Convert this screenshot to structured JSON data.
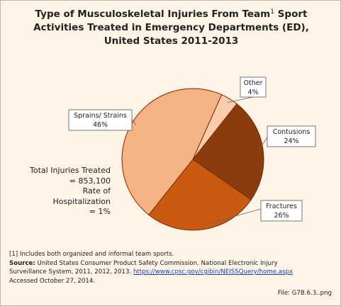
{
  "title": {
    "line1_pre": "Type of Musculoskeletal Injuries From Team",
    "superscript": "1",
    "line1_post": " Sport",
    "line2": "Activities Treated in Emergency Departments (ED),",
    "line3": "United States 2011-2013"
  },
  "stats": {
    "total_label": "Total Injuries Treated",
    "total_value": "= 853,100",
    "rate_label": "Rate of Hospitalization",
    "rate_value": "= 1%"
  },
  "footnotes": {
    "note1": "[1] Includes both organized and informal team sports.",
    "source_label": "Source:",
    "source_text_1": " United States Consumer Product Safety Commission. National Electronic Injury",
    "source_text_2": "Surveillance System, 2011, 2012, 2013. ",
    "source_link": "https://www.cpsc.gov/cgibin/NEISSQuery/home.aspx",
    "accessed": "Accessed October 27, 2014.",
    "file": "File: G7B.6.3..png"
  },
  "chart_data": {
    "type": "pie",
    "slices": [
      {
        "label": "Other",
        "value_label": "4%",
        "value": 4,
        "color": "#f9ccab"
      },
      {
        "label": "Contusions",
        "value_label": "24%",
        "value": 24,
        "color": "#8b3c0c"
      },
      {
        "label": "Fractures",
        "value_label": "26%",
        "value": 26,
        "color": "#c95a10"
      },
      {
        "label": "Sprains/ Strains",
        "value_label": "46%",
        "value": 46,
        "color": "#f5b283"
      }
    ],
    "start_angle_deg": 24,
    "direction": "clockwise",
    "outline_color": "#7a2a05"
  }
}
